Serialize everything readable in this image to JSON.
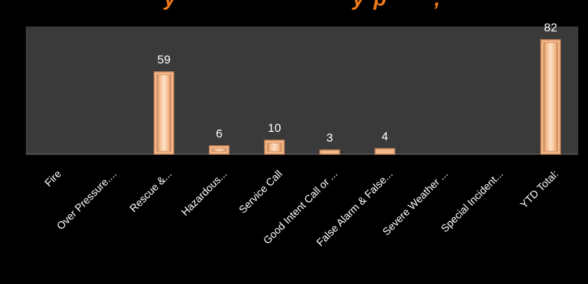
{
  "chart_data": {
    "type": "bar",
    "title": "",
    "xlabel": "",
    "ylabel": "",
    "categories": [
      "Fire",
      "Over Pressure....",
      "Rescue &...",
      "Hazardous...",
      "Service Call",
      "Good Intent Call or ...",
      "False Alarm & False...",
      "Severe Weather ...",
      "Special Incident...",
      "YTD Total:"
    ],
    "values": [
      0,
      0,
      59,
      6,
      10,
      3,
      4,
      0,
      0,
      82
    ],
    "data_labels": [
      "",
      "",
      "59",
      "6",
      "10",
      "3",
      "4",
      "",
      "",
      "82"
    ],
    "ylim": [
      0,
      84
    ],
    "grid": false,
    "legend": "none",
    "colors": {
      "background": "#000000",
      "plot_area": "#3a3a3a",
      "bar_fill": "#f4b98a",
      "bar_edge": "#c8845a",
      "bar_highlight": "#fde2c8",
      "axis_line": "#5a5a5a",
      "text": "#ffffff",
      "title_fragment": "#f07a1a"
    }
  }
}
